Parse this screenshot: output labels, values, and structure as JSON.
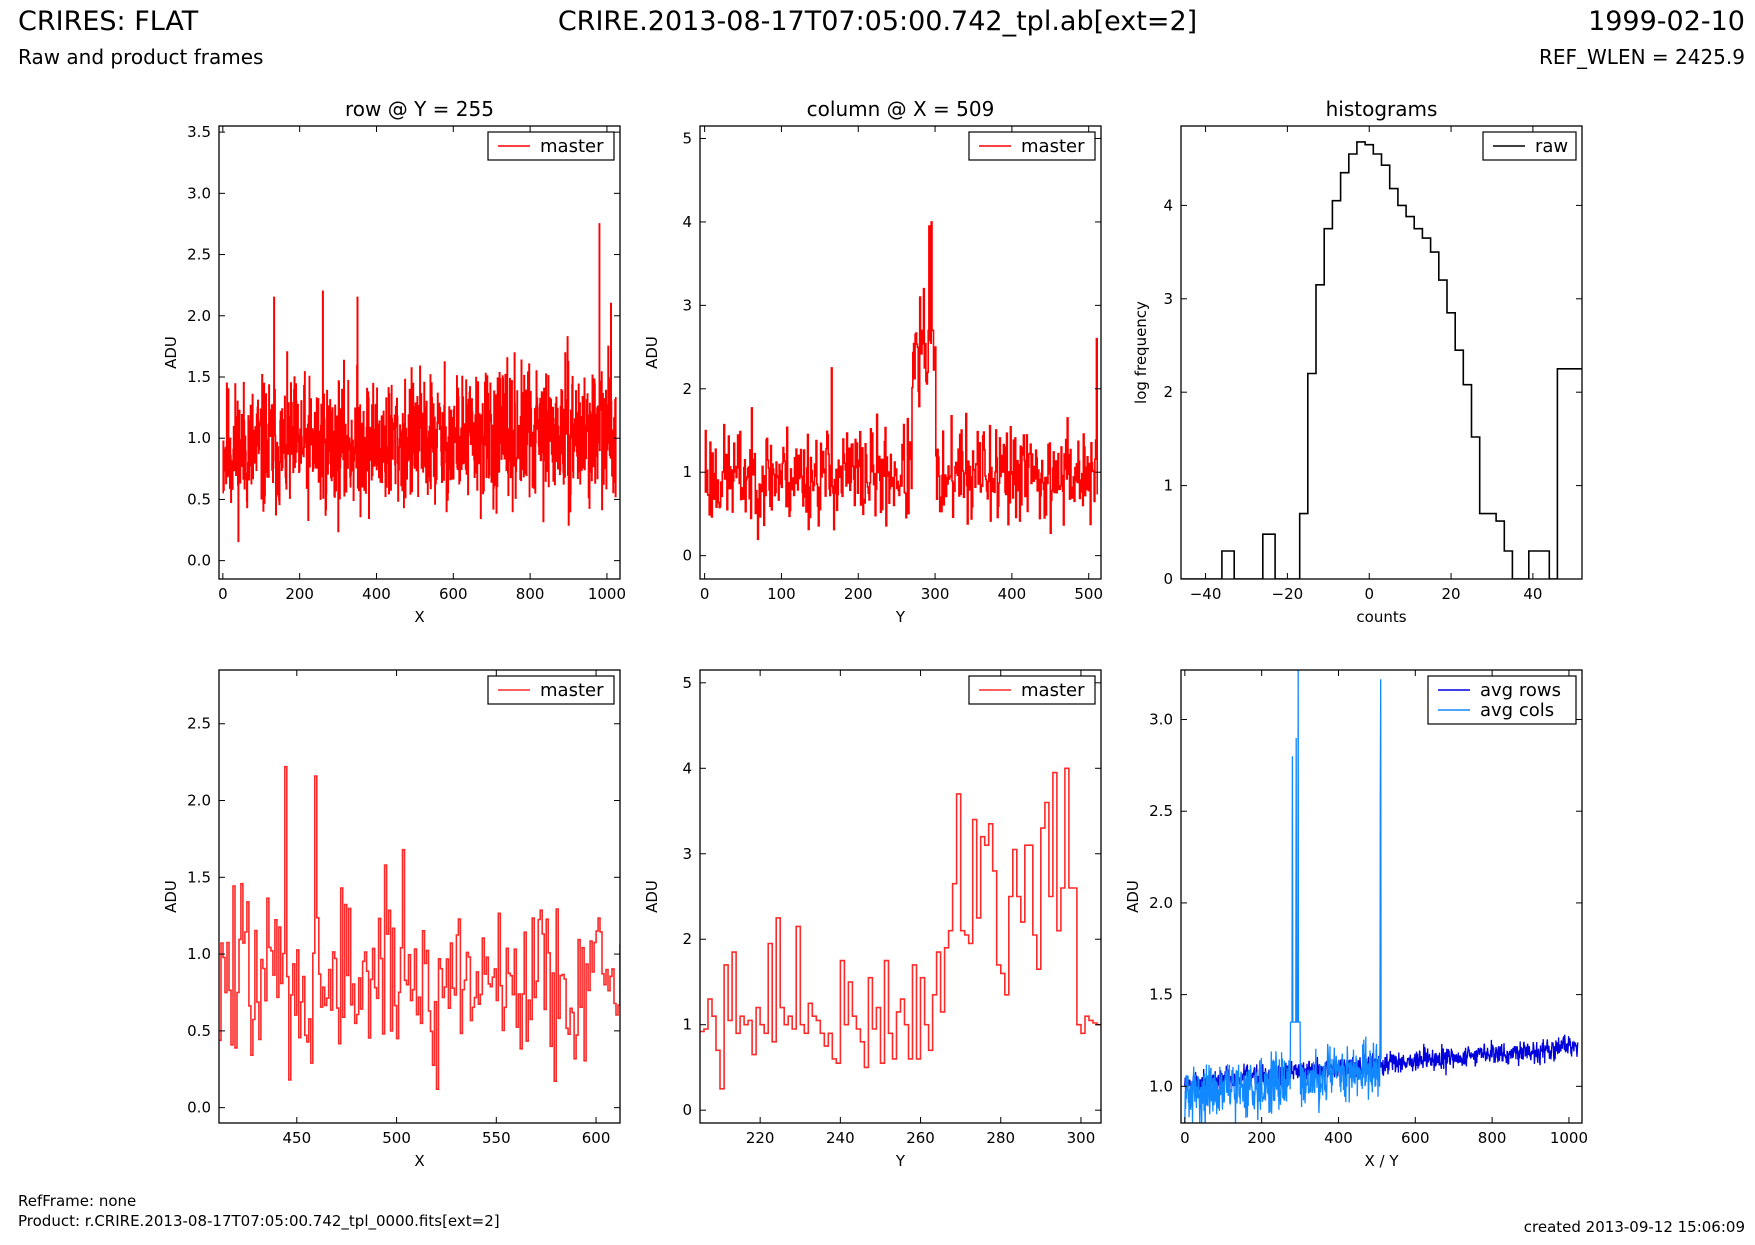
{
  "header": {
    "title": "CRIRES: FLAT",
    "subtitle": "Raw and product frames",
    "filename": "CRIRE.2013-08-17T07:05:00.742_tpl.ab[ext=2]",
    "date": "1999-02-10",
    "ref_wlen": "REF_WLEN = 2425.9"
  },
  "footer": {
    "ref_frame": "RefFrame: none",
    "product": "Product: r.CRIRE.2013-08-17T07:05:00.742_tpl_0000.fits[ext=2]",
    "created": "created 2013-09-12 15:06:09"
  },
  "colors": {
    "master": "#ff0000",
    "master_zoom": "#ff2a2a",
    "raw": "#000000",
    "avg_rows": "#0000dd",
    "avg_cols": "#1188ff"
  },
  "chart_data": [
    {
      "id": "row",
      "type": "line",
      "title": "row @ Y = 255",
      "xlabel": "X",
      "ylabel": "ADU",
      "xlim": [
        -10,
        1034
      ],
      "ylim": [
        -0.15,
        3.55
      ],
      "xticks": [
        0,
        200,
        400,
        600,
        800,
        1000
      ],
      "yticks": [
        0.0,
        0.5,
        1.0,
        1.5,
        2.0,
        2.5,
        3.0,
        3.5
      ],
      "ytick_labels": [
        "0.0",
        "0.5",
        "1.0",
        "1.5",
        "2.0",
        "2.5",
        "3.0",
        "3.5"
      ],
      "legend": "top-right",
      "series": [
        {
          "name": "master",
          "color": "#ff0000",
          "step": true,
          "gen": {
            "kind": "noise",
            "start": 0,
            "end": 1023,
            "n": 1024,
            "base": 0.9,
            "amp": 0.42,
            "trend": 0.15,
            "min": 0.1,
            "max": 2.2,
            "seed": 11,
            "spikes": [
              [
                980,
                2.75
              ],
              [
                133,
                2.15
              ],
              [
                260,
                2.2
              ],
              [
                350,
                2.15
              ],
              [
                1010,
                2.1
              ]
            ]
          }
        }
      ]
    },
    {
      "id": "col",
      "type": "line",
      "title": "column @ X = 509",
      "xlabel": "Y",
      "ylabel": "ADU",
      "xlim": [
        -6,
        516
      ],
      "ylim": [
        -0.28,
        5.15
      ],
      "xticks": [
        0,
        100,
        200,
        300,
        400,
        500
      ],
      "yticks": [
        0,
        1,
        2,
        3,
        4,
        5
      ],
      "ytick_labels": [
        "0",
        "1",
        "2",
        "3",
        "4",
        "5"
      ],
      "legend": "top-right",
      "series": [
        {
          "name": "master",
          "color": "#ff0000",
          "step": true,
          "gen": {
            "kind": "noise",
            "start": 0,
            "end": 511,
            "n": 512,
            "base": 0.95,
            "amp": 0.45,
            "trend": 0.05,
            "min": 0.1,
            "max": 2.7,
            "seed": 23,
            "bump": [
              270,
              300,
              1.6
            ],
            "spikes": [
              [
                295,
                4.0
              ],
              [
                292,
                3.95
              ],
              [
                280,
                3.1
              ],
              [
                285,
                3.2
              ],
              [
                1,
                1.5
              ],
              [
                510,
                2.6
              ],
              [
                165,
                2.25
              ]
            ]
          }
        }
      ]
    },
    {
      "id": "hist",
      "type": "line",
      "title": "histograms",
      "xlabel": "counts",
      "ylabel": "log frequency",
      "xlim": [
        -46,
        52
      ],
      "ylim": [
        0,
        4.85
      ],
      "xticks": [
        -40,
        -20,
        0,
        20,
        40
      ],
      "xtick_labels": [
        "−40",
        "−20",
        "0",
        "20",
        "40"
      ],
      "yticks": [
        0,
        1,
        2,
        3,
        4
      ],
      "ytick_labels": [
        "0",
        "1",
        "2",
        "3",
        "4"
      ],
      "legend": "top-right",
      "series": [
        {
          "name": "raw",
          "color": "#000000",
          "step": true,
          "x": [
            -46,
            -36,
            -33,
            -26,
            -23,
            -17,
            -15,
            -13,
            -11,
            -9,
            -7,
            -5,
            -3,
            -1,
            1,
            3,
            5,
            7,
            9,
            11,
            13,
            15,
            17,
            19,
            21,
            23,
            25,
            27,
            29,
            31,
            33,
            35,
            37,
            39,
            44,
            46,
            49,
            52
          ],
          "y": [
            0,
            0.3,
            0,
            0.48,
            0,
            0.7,
            2.2,
            3.15,
            3.75,
            4.05,
            4.35,
            4.55,
            4.68,
            4.65,
            4.55,
            4.43,
            4.18,
            4.0,
            3.88,
            3.75,
            3.65,
            3.5,
            3.2,
            2.85,
            2.45,
            2.08,
            1.52,
            0.7,
            0.7,
            0.62,
            0.3,
            0,
            0,
            0.3,
            0,
            2.25,
            2.25,
            2.25
          ]
        }
      ]
    },
    {
      "id": "rowzoom",
      "type": "line",
      "title": "",
      "xlabel": "X",
      "ylabel": "ADU",
      "xlim": [
        411,
        612
      ],
      "ylim": [
        -0.1,
        2.85
      ],
      "xticks": [
        450,
        500,
        550,
        600
      ],
      "yticks": [
        0.0,
        0.5,
        1.0,
        1.5,
        2.0,
        2.5
      ],
      "ytick_labels": [
        "0.0",
        "0.5",
        "1.0",
        "1.5",
        "2.0",
        "2.5"
      ],
      "legend": "top-right",
      "series": [
        {
          "name": "master",
          "color": "#ff2a2a",
          "step": true,
          "gen": {
            "kind": "noise",
            "start": 411,
            "end": 612,
            "n": 202,
            "base": 0.85,
            "amp": 0.45,
            "trend": 0.0,
            "min": 0.12,
            "max": 1.9,
            "seed": 47,
            "spikes": [
              [
                444,
                2.22
              ],
              [
                459,
                2.16
              ],
              [
                446,
                0.18
              ],
              [
                520,
                0.12
              ],
              [
                503,
                1.68
              ]
            ]
          }
        }
      ]
    },
    {
      "id": "colzoom",
      "type": "line",
      "title": "",
      "xlabel": "Y",
      "ylabel": "ADU",
      "xlim": [
        205,
        305
      ],
      "ylim": [
        -0.15,
        5.15
      ],
      "xticks": [
        220,
        240,
        260,
        280,
        300
      ],
      "yticks": [
        0,
        1,
        2,
        3,
        4,
        5
      ],
      "ytick_labels": [
        "0",
        "1",
        "2",
        "3",
        "4",
        "5"
      ],
      "legend": "top-right",
      "series": [
        {
          "name": "master",
          "color": "#ff2a2a",
          "step": true,
          "x": [
            205,
            206,
            207,
            208,
            209,
            210,
            211,
            212,
            213,
            214,
            215,
            216,
            217,
            218,
            219,
            220,
            221,
            222,
            223,
            224,
            225,
            226,
            227,
            228,
            229,
            230,
            231,
            232,
            233,
            234,
            235,
            236,
            237,
            238,
            239,
            240,
            241,
            242,
            243,
            244,
            245,
            246,
            247,
            248,
            249,
            250,
            251,
            252,
            253,
            254,
            255,
            256,
            257,
            258,
            259,
            260,
            261,
            262,
            263,
            264,
            265,
            266,
            267,
            268,
            269,
            270,
            271,
            272,
            273,
            274,
            275,
            276,
            277,
            278,
            279,
            280,
            281,
            282,
            283,
            284,
            285,
            286,
            287,
            288,
            289,
            290,
            291,
            292,
            293,
            294,
            295,
            296,
            297,
            298,
            299,
            300,
            301,
            302,
            303,
            304,
            305
          ],
          "y": [
            0.92,
            0.95,
            1.3,
            1.1,
            0.7,
            0.25,
            1.7,
            1.05,
            1.85,
            0.9,
            1.1,
            1.0,
            1.05,
            0.65,
            1.2,
            1.0,
            0.9,
            1.95,
            0.8,
            2.25,
            1.2,
            1.0,
            1.1,
            0.95,
            2.15,
            1.0,
            0.9,
            1.25,
            1.1,
            1.05,
            0.9,
            0.75,
            0.9,
            0.6,
            0.55,
            1.75,
            1.0,
            1.5,
            1.1,
            0.95,
            0.8,
            0.5,
            1.55,
            0.95,
            1.2,
            0.55,
            1.75,
            0.9,
            0.6,
            1.15,
            1.3,
            1.0,
            0.6,
            1.7,
            0.6,
            1.55,
            1.0,
            0.7,
            1.35,
            1.85,
            1.15,
            1.9,
            2.1,
            2.65,
            3.7,
            2.1,
            2.05,
            1.95,
            3.4,
            2.25,
            3.2,
            3.1,
            3.35,
            2.8,
            1.7,
            1.6,
            1.35,
            2.5,
            3.05,
            2.5,
            2.2,
            3.1,
            3.1,
            2.05,
            1.65,
            3.3,
            3.6,
            2.5,
            3.95,
            2.1,
            2.6,
            4.0,
            2.6,
            2.6,
            1.0,
            0.9,
            1.1,
            1.05,
            1.02,
            1.0,
            1.0
          ]
        }
      ]
    },
    {
      "id": "avg",
      "type": "line",
      "title": "",
      "xlabel": "X / Y",
      "ylabel": "ADU",
      "xlim": [
        -10,
        1034
      ],
      "ylim": [
        0.8,
        3.27
      ],
      "xticks": [
        0,
        200,
        400,
        600,
        800,
        1000
      ],
      "yticks": [
        1.0,
        1.5,
        2.0,
        2.5,
        3.0
      ],
      "ytick_labels": [
        "1.0",
        "1.5",
        "2.0",
        "2.5",
        "3.0"
      ],
      "legend": "top-right",
      "series": [
        {
          "name": "avg rows",
          "color": "#0000dd",
          "step": false,
          "gen": {
            "kind": "noise",
            "start": 0,
            "end": 1023,
            "n": 1024,
            "base": 1.02,
            "amp": 0.05,
            "trend": 0.2,
            "min": 0.9,
            "max": 1.36,
            "seed": 5
          }
        },
        {
          "name": "avg cols",
          "color": "#1188ff",
          "step": false,
          "gen": {
            "kind": "noise",
            "start": 0,
            "end": 511,
            "n": 512,
            "base": 0.95,
            "amp": 0.12,
            "trend": 0.15,
            "min": 0.75,
            "max": 1.35,
            "seed": 31,
            "bump": [
              275,
              300,
              1.9
            ],
            "spikes": [
              [
                295,
                3.27
              ],
              [
                290,
                2.9
              ],
              [
                280,
                2.8
              ],
              [
                510,
                3.22
              ],
              [
                509,
                2.6
              ]
            ]
          }
        }
      ]
    }
  ]
}
